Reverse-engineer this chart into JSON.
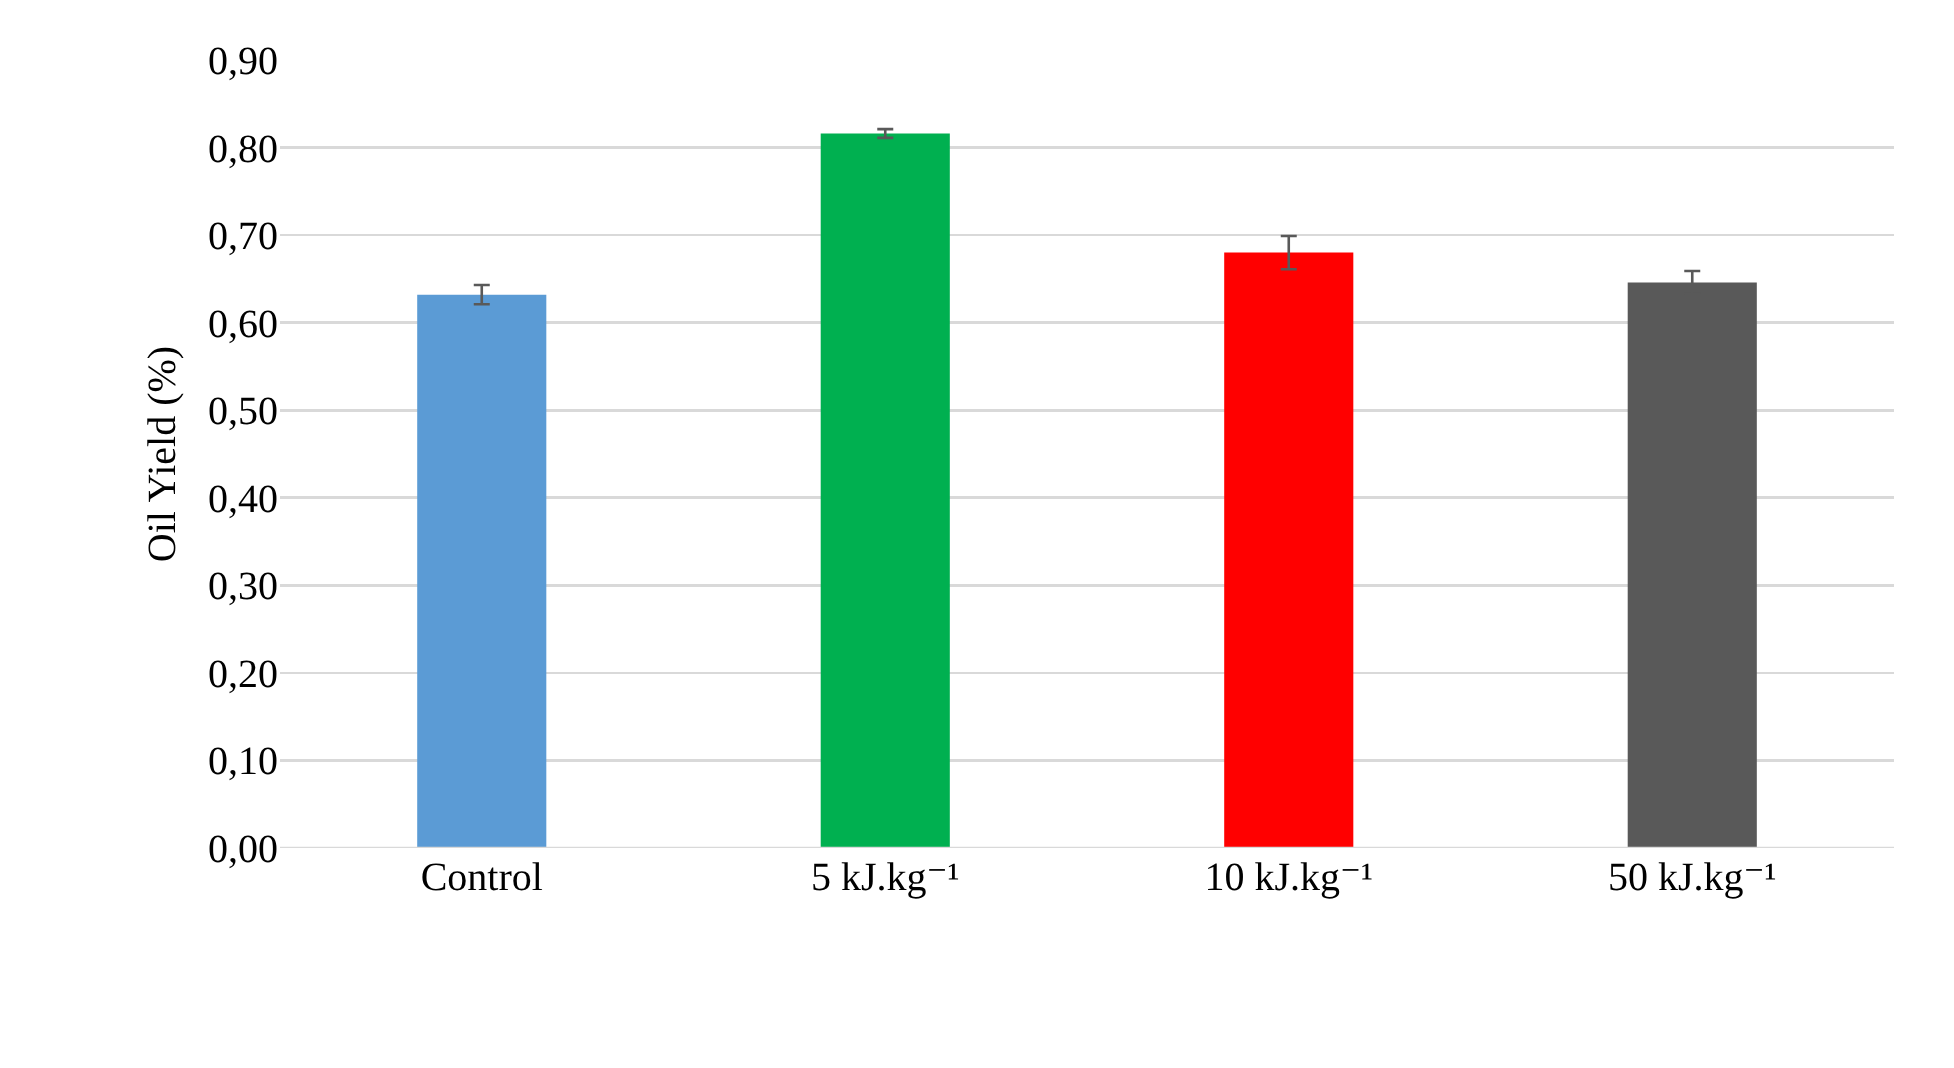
{
  "chart_data": {
    "type": "bar",
    "ylabel": "Oil Yield (%)",
    "categories": [
      "Control",
      "5 kJ.kg⁻¹",
      "10 kJ.kg⁻¹",
      "50 kJ.kg⁻¹"
    ],
    "values": [
      0.632,
      0.816,
      0.68,
      0.646
    ],
    "errors": [
      0.011,
      0.005,
      0.019,
      0.013
    ],
    "colors": [
      "#5b9bd5",
      "#00b050",
      "#ff0000",
      "#595959"
    ],
    "ylim": [
      0,
      0.9
    ],
    "yticks": [
      {
        "value": 0,
        "label": "0,00"
      },
      {
        "value": 0.1,
        "label": "0,10"
      },
      {
        "value": 0.2,
        "label": "0,20"
      },
      {
        "value": 0.3,
        "label": "0,30"
      },
      {
        "value": 0.4,
        "label": "0,40"
      },
      {
        "value": 0.5,
        "label": "0,50"
      },
      {
        "value": 0.6,
        "label": "0,60"
      },
      {
        "value": 0.7,
        "label": "0,70"
      },
      {
        "value": 0.8,
        "label": "0,80"
      },
      {
        "value": 0.9,
        "label": "0,90"
      }
    ],
    "grid": "y"
  }
}
